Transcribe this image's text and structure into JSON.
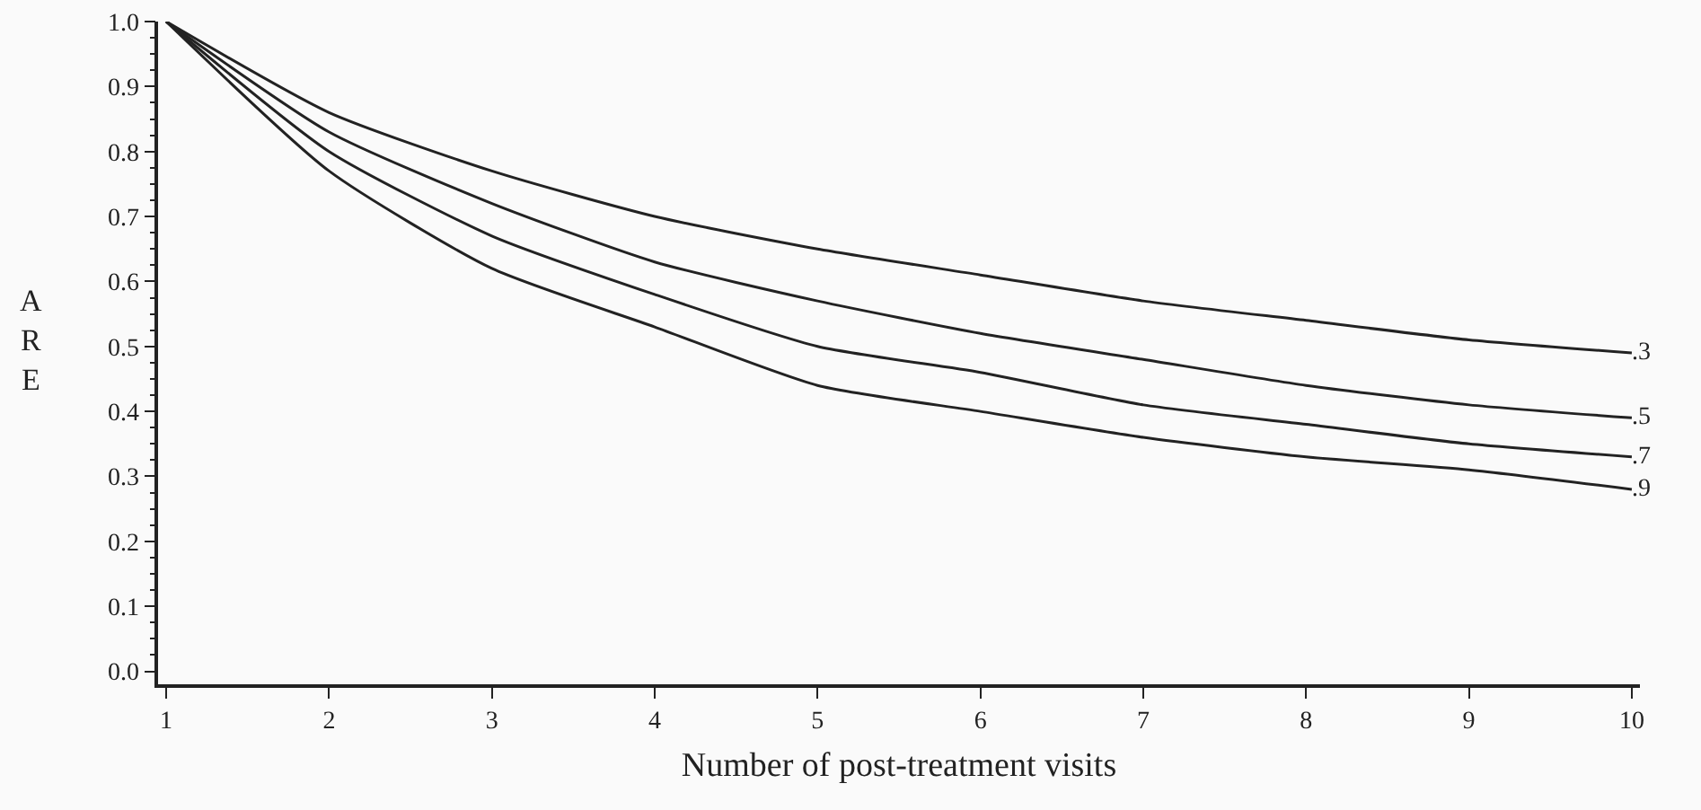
{
  "chart_data": {
    "type": "line",
    "xlabel": "Number of post-treatment visits",
    "ylabel": "A\nR\nE",
    "x": [
      1,
      2,
      3,
      4,
      5,
      6,
      7,
      8,
      9,
      10
    ],
    "series": [
      {
        "name": ".3",
        "color": "#222222",
        "values": [
          1.0,
          0.86,
          0.77,
          0.7,
          0.65,
          0.61,
          0.57,
          0.54,
          0.51,
          0.49
        ]
      },
      {
        "name": ".5",
        "color": "#222222",
        "values": [
          1.0,
          0.83,
          0.72,
          0.63,
          0.57,
          0.52,
          0.48,
          0.44,
          0.41,
          0.39
        ]
      },
      {
        "name": ".7",
        "color": "#222222",
        "values": [
          1.0,
          0.8,
          0.67,
          0.58,
          0.5,
          0.46,
          0.41,
          0.38,
          0.35,
          0.33
        ]
      },
      {
        "name": ".9",
        "color": "#222222",
        "values": [
          1.0,
          0.77,
          0.62,
          0.53,
          0.44,
          0.4,
          0.36,
          0.33,
          0.31,
          0.28
        ]
      }
    ],
    "xlim": [
      0.95,
      10.05
    ],
    "xticks": [
      1,
      2,
      3,
      4,
      5,
      6,
      7,
      8,
      9,
      10
    ],
    "ylim": [
      -0.02,
      1.0
    ],
    "yticks": [
      {
        "value": 0,
        "label": "0.0"
      },
      {
        "value": 0.1,
        "label": "0.1"
      },
      {
        "value": 0.2,
        "label": "0.2"
      },
      {
        "value": 0.3,
        "label": "0.3"
      },
      {
        "value": 0.4,
        "label": "0.4"
      },
      {
        "value": 0.5,
        "label": "0.5"
      },
      {
        "value": 0.6,
        "label": "0.6"
      },
      {
        "value": 0.7,
        "label": "0.7"
      },
      {
        "value": 0.8,
        "label": "0.8"
      },
      {
        "value": 0.9,
        "label": "0.9"
      },
      {
        "value": 1.0,
        "label": "1.0"
      }
    ],
    "grid": false,
    "legend": false,
    "marker": "none",
    "line_style": "solid"
  }
}
